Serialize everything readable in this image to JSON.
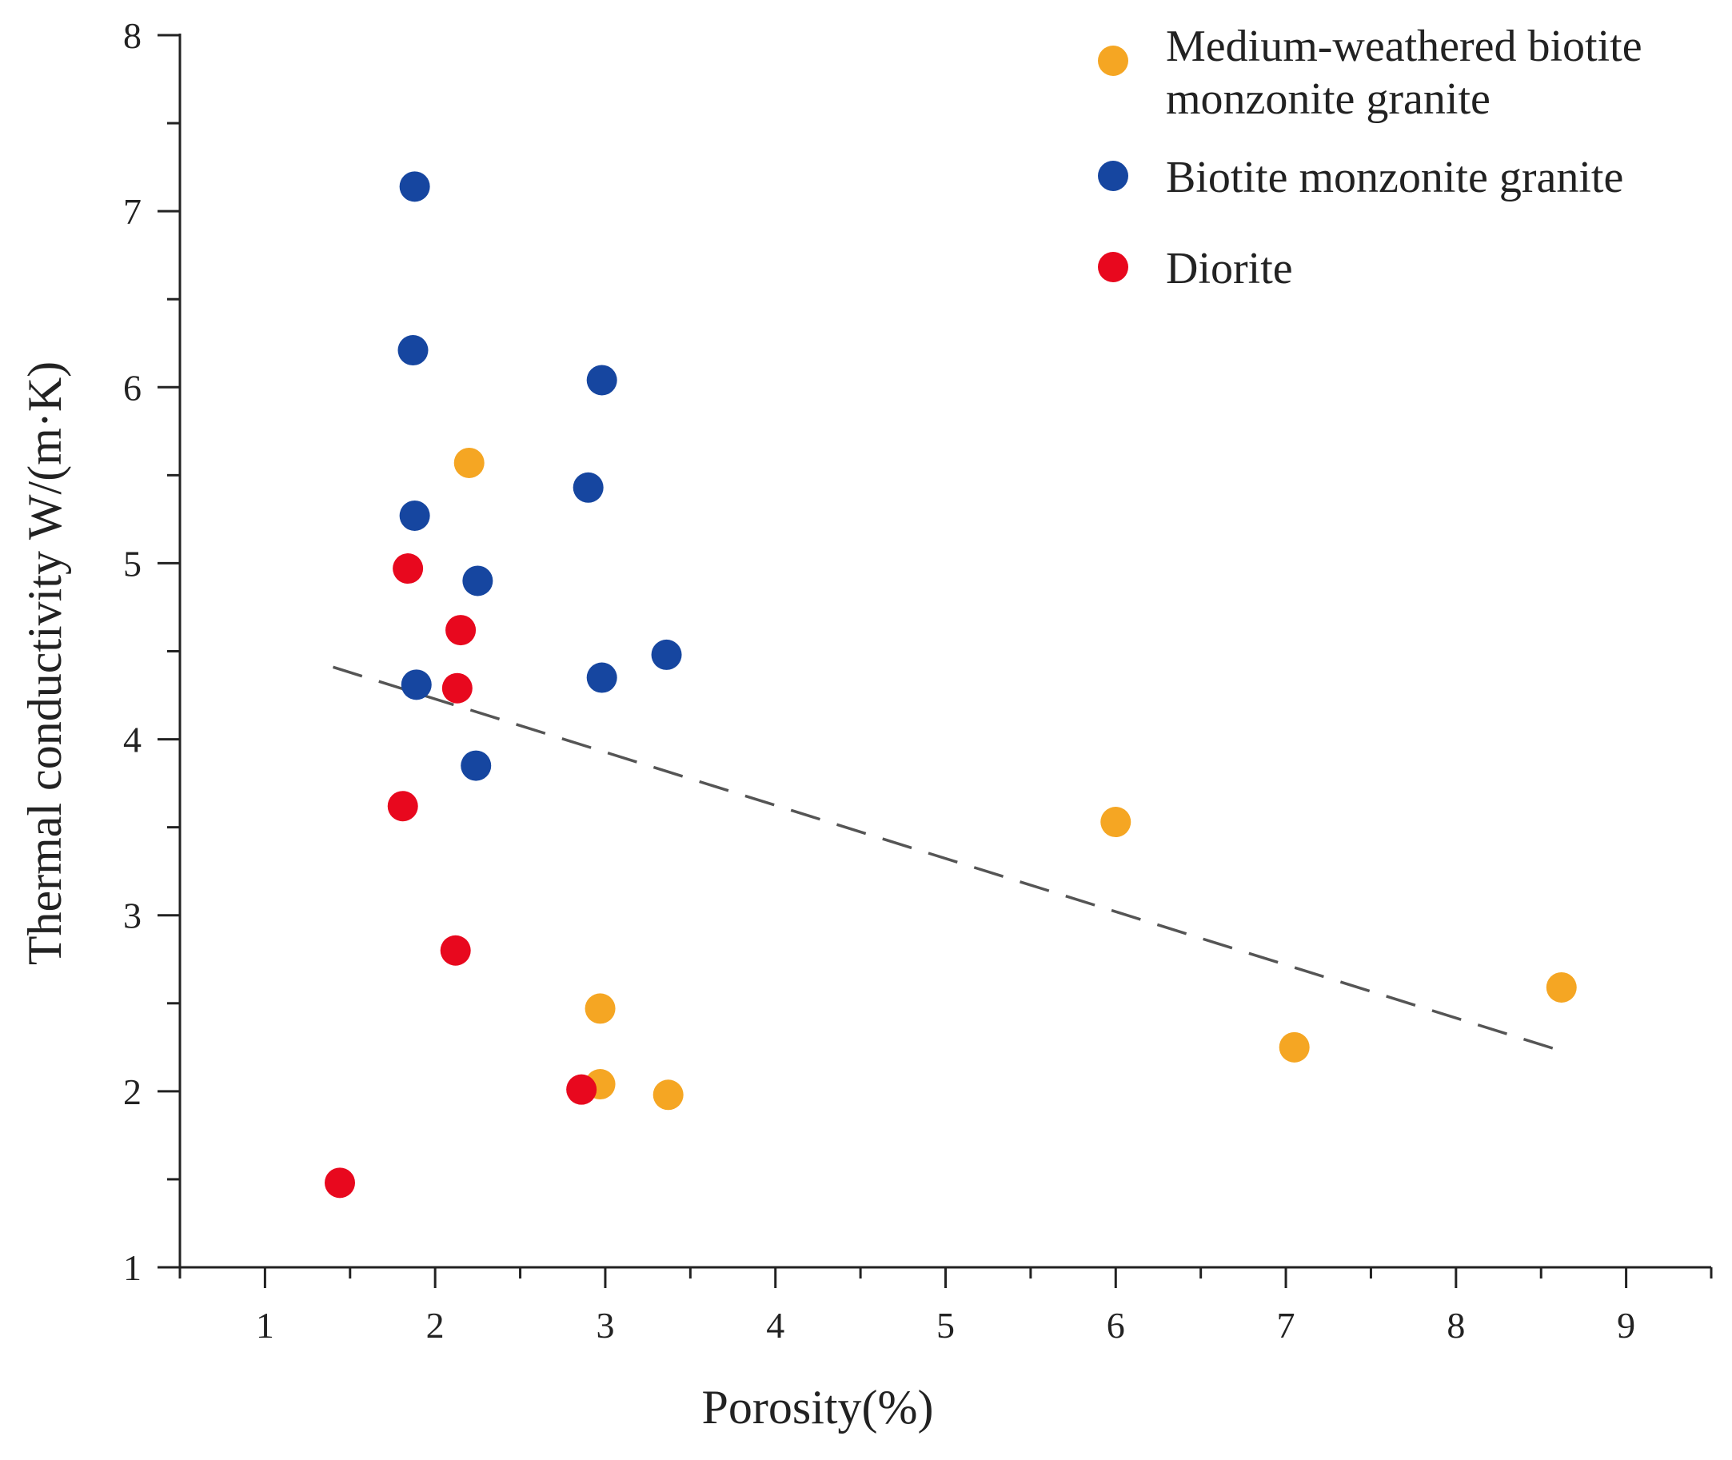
{
  "chart_data": {
    "type": "scatter",
    "title": "",
    "xlabel": "Porosity(%)",
    "ylabel": "Thermal conductivity W/(m·K)",
    "xlim": [
      0.5,
      9.5
    ],
    "ylim": [
      1,
      8
    ],
    "x_ticks": [
      1,
      2,
      3,
      4,
      5,
      6,
      7,
      8,
      9
    ],
    "y_ticks": [
      1,
      2,
      3,
      4,
      5,
      6,
      7,
      8
    ],
    "x_minor_step": 0.5,
    "y_minor_step": 0.5,
    "grid": false,
    "legend_position": "top-right",
    "series": [
      {
        "name": "Medium-weathered biotite monzonite granite",
        "legend_lines": [
          "Medium-weathered biotite",
          "monzonite granite"
        ],
        "color": "#F5A623",
        "points": [
          [
            2.2,
            5.57
          ],
          [
            2.97,
            2.47
          ],
          [
            2.97,
            2.04
          ],
          [
            3.37,
            1.98
          ],
          [
            6.0,
            3.53
          ],
          [
            7.05,
            2.25
          ],
          [
            8.62,
            2.59
          ]
        ]
      },
      {
        "name": "Biotite monzonite granite",
        "legend_lines": [
          "Biotite monzonite granite"
        ],
        "color": "#1646A0",
        "points": [
          [
            1.88,
            7.14
          ],
          [
            1.87,
            6.21
          ],
          [
            2.98,
            6.04
          ],
          [
            2.9,
            5.43
          ],
          [
            1.88,
            5.27
          ],
          [
            2.25,
            4.9
          ],
          [
            3.36,
            4.48
          ],
          [
            2.98,
            4.35
          ],
          [
            1.89,
            4.31
          ],
          [
            2.24,
            3.85
          ]
        ]
      },
      {
        "name": "Diorite",
        "legend_lines": [
          "Diorite"
        ],
        "color": "#E8081E",
        "points": [
          [
            1.84,
            4.97
          ],
          [
            2.15,
            4.62
          ],
          [
            2.13,
            4.29
          ],
          [
            1.81,
            3.62
          ],
          [
            2.12,
            2.8
          ],
          [
            2.86,
            2.01
          ],
          [
            1.44,
            1.48
          ]
        ]
      }
    ],
    "trendline": {
      "style": "dashed",
      "color": "#555555",
      "x": [
        1.4,
        8.65
      ],
      "y": [
        4.41,
        2.22
      ]
    }
  }
}
